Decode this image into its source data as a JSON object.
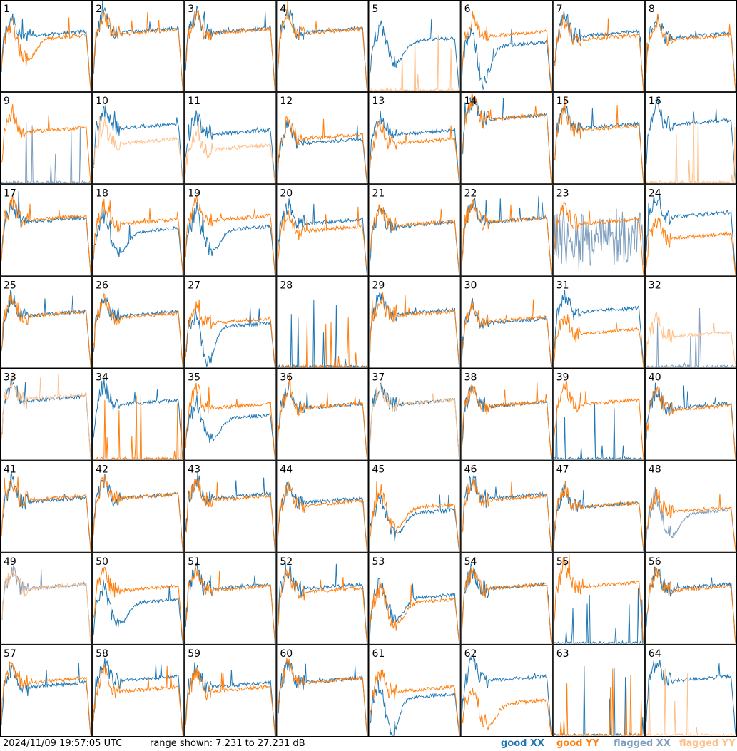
{
  "chart_data": {
    "type": "line",
    "title": "",
    "grid_layout": "8x8",
    "timestamp": "2024/11/09 19:57:05 UTC",
    "range_text": "range shown: 7.231 to 27.231 dB",
    "ylim": [
      7.231,
      27.231
    ],
    "y_unit": "dB",
    "xlabel": "",
    "ylabel": "",
    "legend": [
      {
        "label": "good XX",
        "color": "#1f77b4"
      },
      {
        "label": "good YY",
        "color": "#ff7f0e"
      },
      {
        "label": "flagged XX",
        "color": "#7f9fbf"
      },
      {
        "label": "flagged YY",
        "color": "#ffc08a"
      }
    ],
    "panels": [
      {
        "label": "1",
        "xx": "good",
        "yy": "good",
        "xx_level": 0.62,
        "yy_level": 0.58,
        "xx_shape": "normal",
        "yy_shape": "dip"
      },
      {
        "label": "2",
        "xx": "good",
        "yy": "good",
        "xx_level": 0.66,
        "yy_level": 0.64,
        "xx_shape": "normal",
        "yy_shape": "normal"
      },
      {
        "label": "3",
        "xx": "good",
        "yy": "good",
        "xx_level": 0.66,
        "yy_level": 0.65,
        "xx_shape": "normal",
        "yy_shape": "normal"
      },
      {
        "label": "4",
        "xx": "good",
        "yy": "good",
        "xx_level": 0.66,
        "yy_level": 0.65,
        "xx_shape": "normal",
        "yy_shape": "normal"
      },
      {
        "label": "5",
        "xx": "good",
        "yy": "flagged",
        "xx_level": 0.55,
        "yy_level": 0.0,
        "xx_shape": "dip",
        "yy_shape": "dead"
      },
      {
        "label": "6",
        "xx": "good",
        "yy": "good",
        "xx_level": 0.5,
        "yy_level": 0.62,
        "xx_shape": "deepdip",
        "yy_shape": "normal"
      },
      {
        "label": "7",
        "xx": "good",
        "yy": "good",
        "xx_level": 0.62,
        "yy_level": 0.58,
        "xx_shape": "normal",
        "yy_shape": "normal"
      },
      {
        "label": "8",
        "xx": "good",
        "yy": "good",
        "xx_level": 0.6,
        "yy_level": 0.58,
        "xx_shape": "normal",
        "yy_shape": "normal"
      },
      {
        "label": "9",
        "xx": "flagged",
        "yy": "good",
        "xx_level": 0.05,
        "yy_level": 0.58,
        "xx_shape": "dead",
        "yy_shape": "normal"
      },
      {
        "label": "10",
        "xx": "good",
        "yy": "flagged",
        "xx_level": 0.62,
        "yy_level": 0.45,
        "xx_shape": "normal",
        "yy_shape": "normal"
      },
      {
        "label": "11",
        "xx": "good",
        "yy": "flagged",
        "xx_level": 0.55,
        "yy_level": 0.38,
        "xx_shape": "normal",
        "yy_shape": "normal"
      },
      {
        "label": "12",
        "xx": "good",
        "yy": "good",
        "xx_level": 0.45,
        "yy_level": 0.5,
        "xx_shape": "normal",
        "yy_shape": "normal"
      },
      {
        "label": "13",
        "xx": "good",
        "yy": "good",
        "xx_level": 0.55,
        "yy_level": 0.45,
        "xx_shape": "normal",
        "yy_shape": "normal"
      },
      {
        "label": "14",
        "xx": "good",
        "yy": "good",
        "xx_level": 0.72,
        "yy_level": 0.72,
        "xx_shape": "normal",
        "yy_shape": "normal"
      },
      {
        "label": "15",
        "xx": "good",
        "yy": "good",
        "xx_level": 0.62,
        "yy_level": 0.6,
        "xx_shape": "normal",
        "yy_shape": "normal"
      },
      {
        "label": "16",
        "xx": "good",
        "yy": "flagged",
        "xx_level": 0.66,
        "yy_level": 0.0,
        "xx_shape": "normal",
        "yy_shape": "dead"
      },
      {
        "label": "17",
        "xx": "good",
        "yy": "good",
        "xx_level": 0.6,
        "yy_level": 0.62,
        "xx_shape": "normal",
        "yy_shape": "normal"
      },
      {
        "label": "18",
        "xx": "good",
        "yy": "good",
        "xx_level": 0.48,
        "yy_level": 0.58,
        "xx_shape": "dip",
        "yy_shape": "normal"
      },
      {
        "label": "19",
        "xx": "good",
        "yy": "good",
        "xx_level": 0.5,
        "yy_level": 0.62,
        "xx_shape": "dip",
        "yy_shape": "normal"
      },
      {
        "label": "20",
        "xx": "good",
        "yy": "good",
        "xx_level": 0.58,
        "yy_level": 0.5,
        "xx_shape": "normal",
        "yy_shape": "normal"
      },
      {
        "label": "21",
        "xx": "good",
        "yy": "good",
        "xx_level": 0.55,
        "yy_level": 0.56,
        "xx_shape": "normal",
        "yy_shape": "normal"
      },
      {
        "label": "22",
        "xx": "good",
        "yy": "good",
        "xx_level": 0.6,
        "yy_level": 0.6,
        "xx_shape": "normal",
        "yy_shape": "normal"
      },
      {
        "label": "23",
        "xx": "flagged",
        "yy": "good",
        "xx_level": 0.3,
        "yy_level": 0.58,
        "xx_shape": "noisy",
        "yy_shape": "normal"
      },
      {
        "label": "24",
        "xx": "good",
        "yy": "good",
        "xx_level": 0.66,
        "yy_level": 0.42,
        "xx_shape": "normal",
        "yy_shape": "normal"
      },
      {
        "label": "25",
        "xx": "good",
        "yy": "good",
        "xx_level": 0.58,
        "yy_level": 0.58,
        "xx_shape": "normal",
        "yy_shape": "normal"
      },
      {
        "label": "26",
        "xx": "good",
        "yy": "good",
        "xx_level": 0.58,
        "yy_level": 0.56,
        "xx_shape": "normal",
        "yy_shape": "normal"
      },
      {
        "label": "27",
        "xx": "good",
        "yy": "good",
        "xx_level": 0.45,
        "yy_level": 0.5,
        "xx_shape": "deepdip",
        "yy_shape": "normal"
      },
      {
        "label": "28",
        "xx": "good",
        "yy": "good",
        "xx_level": 0.0,
        "yy_level": 0.0,
        "xx_shape": "dead",
        "yy_shape": "dead"
      },
      {
        "label": "29",
        "xx": "good",
        "yy": "good",
        "xx_level": 0.6,
        "yy_level": 0.58,
        "xx_shape": "normal",
        "yy_shape": "normal"
      },
      {
        "label": "30",
        "xx": "good",
        "yy": "good",
        "xx_level": 0.5,
        "yy_level": 0.52,
        "xx_shape": "normal",
        "yy_shape": "normal"
      },
      {
        "label": "31",
        "xx": "good",
        "yy": "good",
        "xx_level": 0.62,
        "yy_level": 0.38,
        "xx_shape": "normal",
        "yy_shape": "normal"
      },
      {
        "label": "32",
        "xx": "flagged",
        "yy": "flagged",
        "xx_level": 0.0,
        "yy_level": 0.35,
        "xx_shape": "dead",
        "yy_shape": "normal"
      },
      {
        "label": "33",
        "xx": "good",
        "yy": "flagged",
        "xx_level": 0.66,
        "yy_level": 0.68,
        "xx_shape": "normal",
        "yy_shape": "normal"
      },
      {
        "label": "34",
        "xx": "good",
        "yy": "good",
        "xx_level": 0.62,
        "yy_level": 0.0,
        "xx_shape": "normal",
        "yy_shape": "dead"
      },
      {
        "label": "35",
        "xx": "good",
        "yy": "good",
        "xx_level": 0.45,
        "yy_level": 0.58,
        "xx_shape": "dip",
        "yy_shape": "normal"
      },
      {
        "label": "36",
        "xx": "good",
        "yy": "good",
        "xx_level": 0.58,
        "yy_level": 0.58,
        "xx_shape": "normal",
        "yy_shape": "normal"
      },
      {
        "label": "37",
        "xx": "good",
        "yy": "flagged",
        "xx_level": 0.62,
        "yy_level": 0.62,
        "xx_shape": "normal",
        "yy_shape": "normal"
      },
      {
        "label": "38",
        "xx": "good",
        "yy": "good",
        "xx_level": 0.6,
        "yy_level": 0.6,
        "xx_shape": "normal",
        "yy_shape": "normal"
      },
      {
        "label": "39",
        "xx": "good",
        "yy": "good",
        "xx_level": 0.0,
        "yy_level": 0.62,
        "xx_shape": "dead",
        "yy_shape": "normal"
      },
      {
        "label": "40",
        "xx": "good",
        "yy": "good",
        "xx_level": 0.58,
        "yy_level": 0.56,
        "xx_shape": "normal",
        "yy_shape": "normal"
      },
      {
        "label": "41",
        "xx": "good",
        "yy": "good",
        "xx_level": 0.56,
        "yy_level": 0.58,
        "xx_shape": "normal",
        "yy_shape": "normal"
      },
      {
        "label": "42",
        "xx": "good",
        "yy": "good",
        "xx_level": 0.6,
        "yy_level": 0.6,
        "xx_shape": "normal",
        "yy_shape": "normal"
      },
      {
        "label": "43",
        "xx": "good",
        "yy": "good",
        "xx_level": 0.6,
        "yy_level": 0.58,
        "xx_shape": "normal",
        "yy_shape": "normal"
      },
      {
        "label": "44",
        "xx": "good",
        "yy": "good",
        "xx_level": 0.55,
        "yy_level": 0.52,
        "xx_shape": "normal",
        "yy_shape": "normal"
      },
      {
        "label": "45",
        "xx": "good",
        "yy": "good",
        "xx_level": 0.42,
        "yy_level": 0.48,
        "xx_shape": "dip",
        "yy_shape": "dip"
      },
      {
        "label": "46",
        "xx": "good",
        "yy": "good",
        "xx_level": 0.6,
        "yy_level": 0.58,
        "xx_shape": "normal",
        "yy_shape": "normal"
      },
      {
        "label": "47",
        "xx": "good",
        "yy": "good",
        "xx_level": 0.5,
        "yy_level": 0.5,
        "xx_shape": "normal",
        "yy_shape": "normal"
      },
      {
        "label": "48",
        "xx": "flagged",
        "yy": "good",
        "xx_level": 0.42,
        "yy_level": 0.45,
        "xx_shape": "dip",
        "yy_shape": "normal"
      },
      {
        "label": "49",
        "xx": "flagged",
        "yy": "flagged",
        "xx_level": 0.62,
        "yy_level": 0.62,
        "xx_shape": "normal",
        "yy_shape": "normal"
      },
      {
        "label": "50",
        "xx": "good",
        "yy": "good",
        "xx_level": 0.45,
        "yy_level": 0.6,
        "xx_shape": "dip",
        "yy_shape": "normal"
      },
      {
        "label": "51",
        "xx": "good",
        "yy": "good",
        "xx_level": 0.62,
        "yy_level": 0.6,
        "xx_shape": "normal",
        "yy_shape": "normal"
      },
      {
        "label": "52",
        "xx": "good",
        "yy": "good",
        "xx_level": 0.62,
        "yy_level": 0.58,
        "xx_shape": "normal",
        "yy_shape": "normal"
      },
      {
        "label": "53",
        "xx": "good",
        "yy": "good",
        "xx_level": 0.5,
        "yy_level": 0.45,
        "xx_shape": "dip",
        "yy_shape": "dip"
      },
      {
        "label": "54",
        "xx": "good",
        "yy": "good",
        "xx_level": 0.62,
        "yy_level": 0.62,
        "xx_shape": "normal",
        "yy_shape": "normal"
      },
      {
        "label": "55",
        "xx": "good",
        "yy": "good",
        "xx_level": 0.05,
        "yy_level": 0.64,
        "xx_shape": "dead",
        "yy_shape": "normal"
      },
      {
        "label": "56",
        "xx": "good",
        "yy": "good",
        "xx_level": 0.62,
        "yy_level": 0.6,
        "xx_shape": "normal",
        "yy_shape": "normal"
      },
      {
        "label": "57",
        "xx": "good",
        "yy": "good",
        "xx_level": 0.55,
        "yy_level": 0.6,
        "xx_shape": "normal",
        "yy_shape": "normal"
      },
      {
        "label": "58",
        "xx": "good",
        "yy": "good",
        "xx_level": 0.62,
        "yy_level": 0.5,
        "xx_shape": "normal",
        "yy_shape": "normal"
      },
      {
        "label": "59",
        "xx": "good",
        "yy": "good",
        "xx_level": 0.55,
        "yy_level": 0.5,
        "xx_shape": "normal",
        "yy_shape": "normal"
      },
      {
        "label": "60",
        "xx": "good",
        "yy": "good",
        "xx_level": 0.6,
        "yy_level": 0.6,
        "xx_shape": "normal",
        "yy_shape": "normal"
      },
      {
        "label": "61",
        "xx": "good",
        "yy": "good",
        "xx_level": 0.42,
        "yy_level": 0.5,
        "xx_shape": "deepdip",
        "yy_shape": "normal"
      },
      {
        "label": "62",
        "xx": "good",
        "yy": "good",
        "xx_level": 0.62,
        "yy_level": 0.35,
        "xx_shape": "normal",
        "yy_shape": "dip"
      },
      {
        "label": "63",
        "xx": "good",
        "yy": "good",
        "xx_level": 0.0,
        "yy_level": 0.0,
        "xx_shape": "dead",
        "yy_shape": "dead"
      },
      {
        "label": "64",
        "xx": "good",
        "yy": "flagged",
        "xx_level": 0.62,
        "yy_level": 0.0,
        "xx_shape": "normal",
        "yy_shape": "dead"
      }
    ]
  },
  "footer": {
    "timestamp": "2024/11/09 19:57:05 UTC",
    "range": "range shown: 7.231 to 27.231 dB",
    "legend_good_xx": "good XX",
    "legend_good_yy": "good YY",
    "legend_flagged_xx": "flagged XX",
    "legend_flagged_yy": "flagged YY"
  },
  "colors": {
    "good_xx": "#1f77b4",
    "good_yy": "#ff7f0e",
    "flagged_xx": "#7f9fbf",
    "flagged_yy": "#ffc08a"
  }
}
